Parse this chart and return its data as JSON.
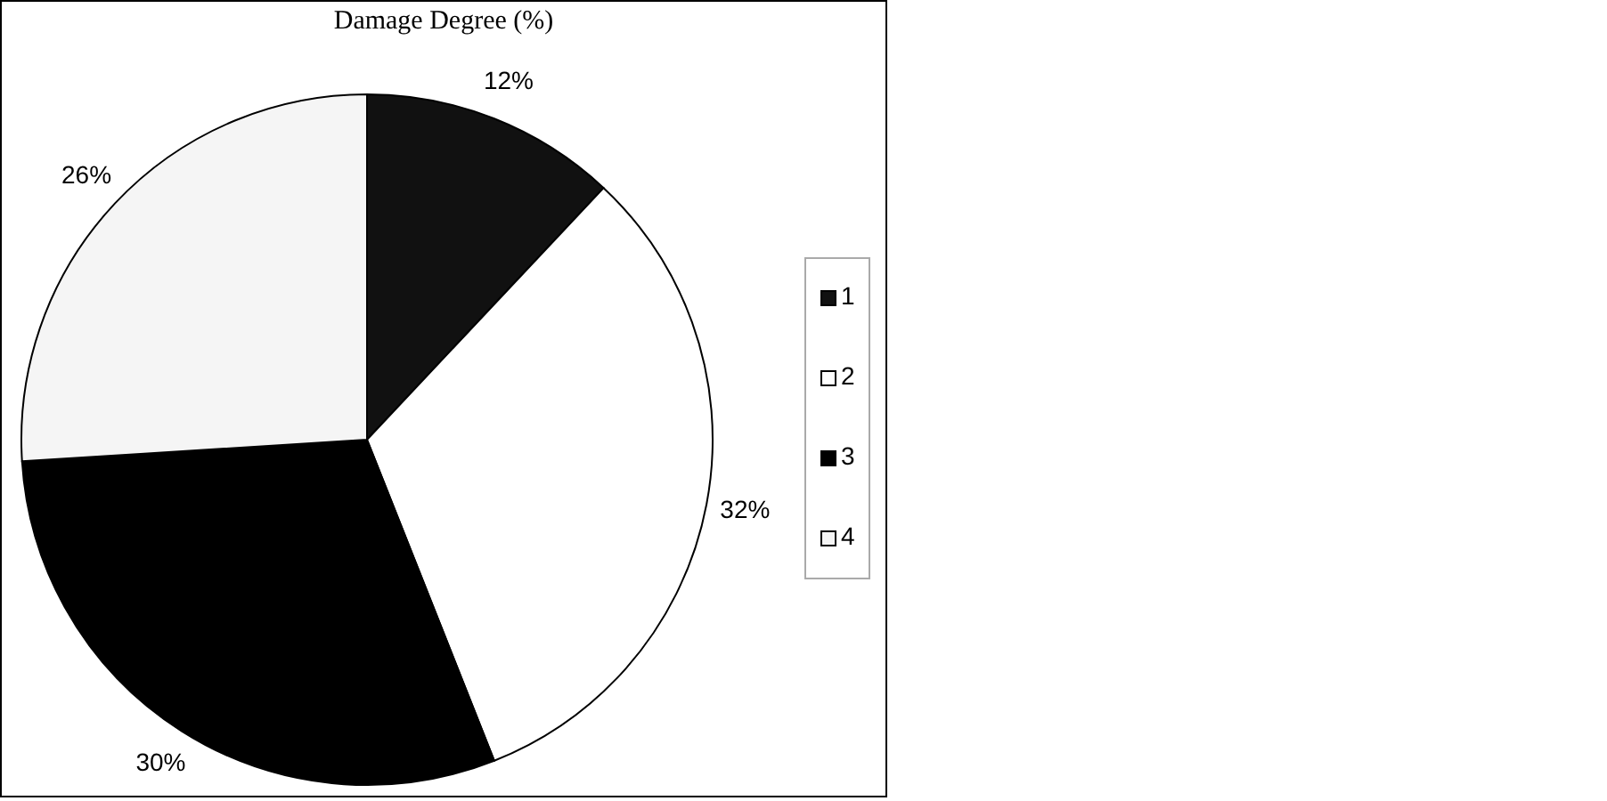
{
  "chart_data": {
    "type": "pie",
    "title": "Damage Degree (%)",
    "categories": [
      "1",
      "2",
      "3",
      "4"
    ],
    "values": [
      12,
      32,
      30,
      26
    ],
    "colors": [
      "#111111",
      "#ffffff",
      "#000000",
      "#f5f5f5"
    ],
    "value_labels": [
      "12%",
      "32%",
      "30%",
      "26%"
    ],
    "legend": "right"
  }
}
